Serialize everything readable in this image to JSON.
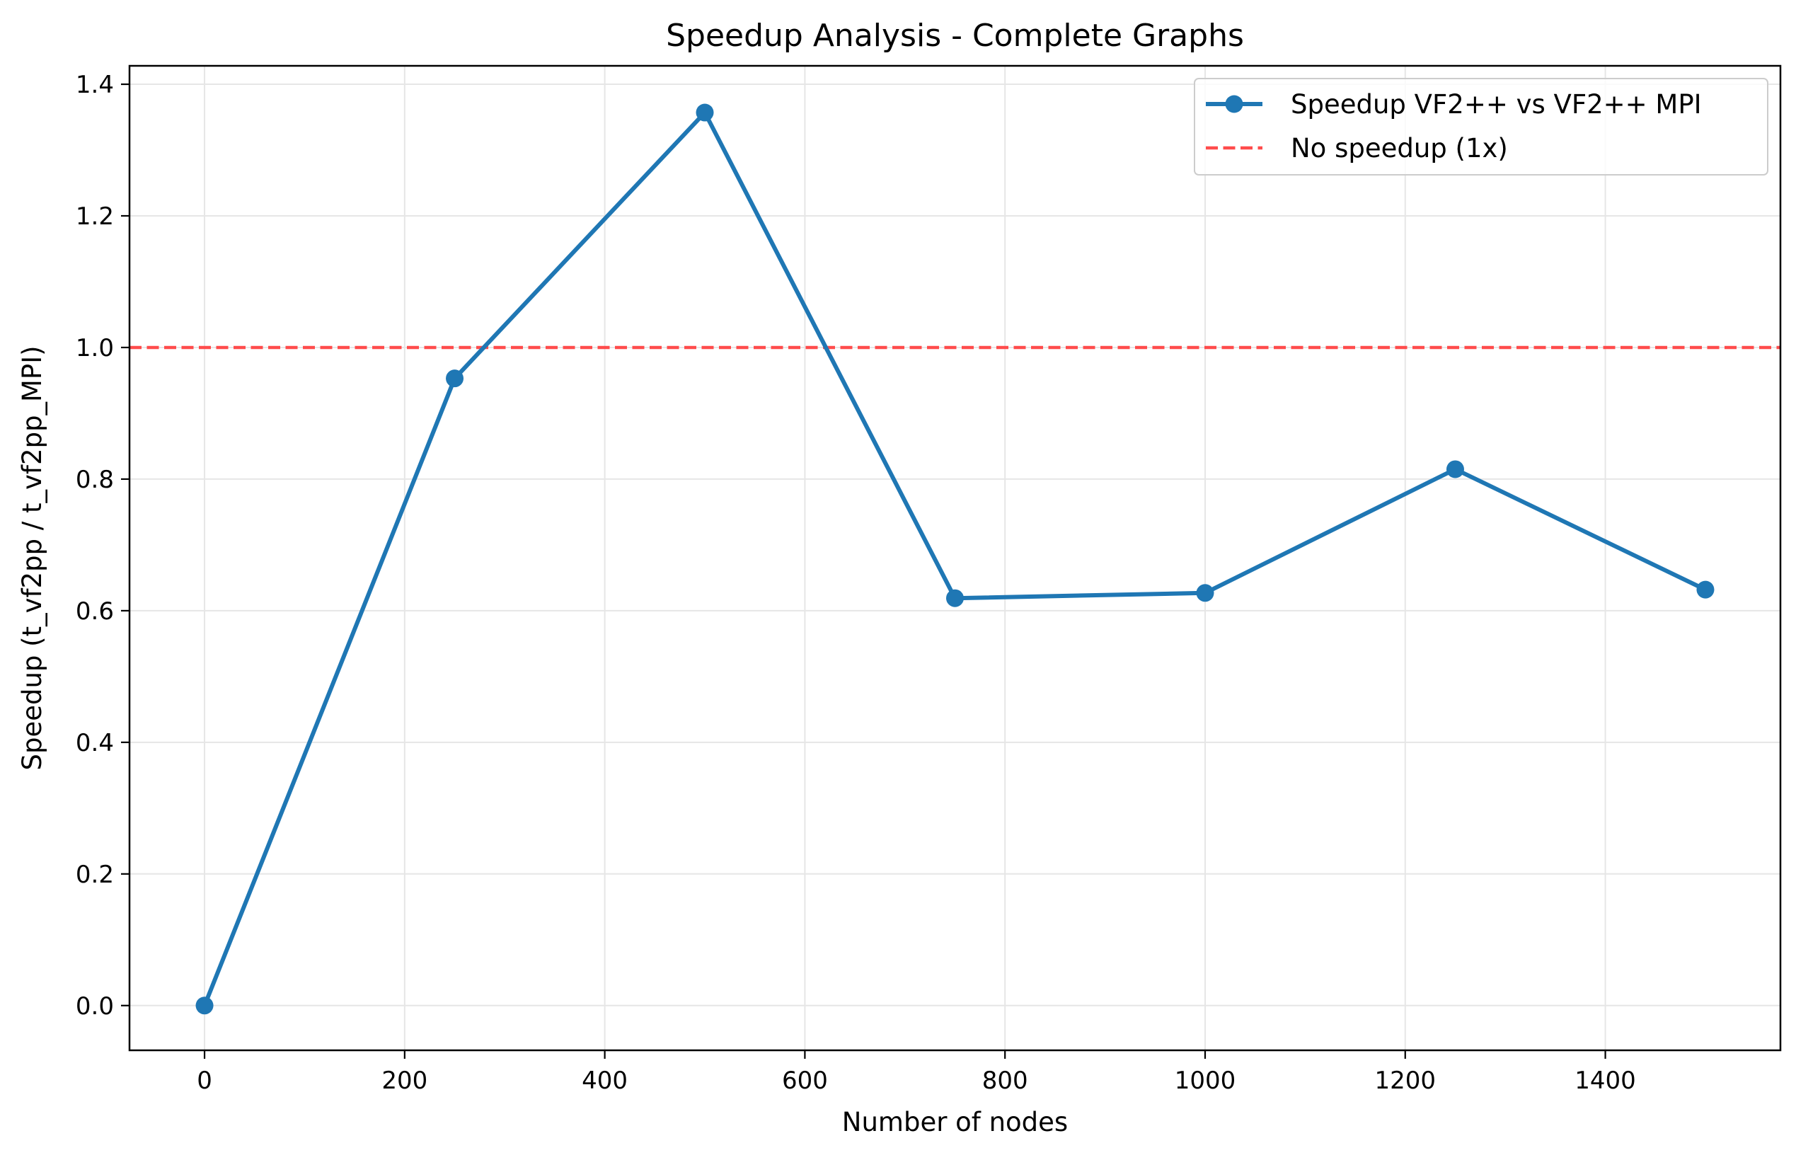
{
  "chart_data": {
    "type": "line",
    "title": "Speedup Analysis - Complete Graphs",
    "xlabel": "Number of nodes",
    "ylabel": "Speedup (t_vf2pp / t_vf2pp_MPI)",
    "xlim": [
      -75,
      1575
    ],
    "ylim": [
      -0.068,
      1.428
    ],
    "xticks": [
      0,
      200,
      400,
      600,
      800,
      1000,
      1200,
      1400
    ],
    "xtick_labels": [
      "0",
      "200",
      "400",
      "600",
      "800",
      "1000",
      "1200",
      "1400"
    ],
    "yticks": [
      0.0,
      0.2,
      0.4,
      0.6,
      0.8,
      1.0,
      1.2,
      1.4
    ],
    "ytick_labels": [
      "0.0",
      "0.2",
      "0.4",
      "0.6",
      "0.8",
      "1.0",
      "1.2",
      "1.4"
    ],
    "grid": true,
    "legend_position": "top-right",
    "series": [
      {
        "name": "Speedup VF2++ vs VF2++ MPI",
        "style": "line-marker",
        "color": "#1f77b4",
        "x": [
          0,
          250,
          500,
          750,
          1000,
          1250,
          1500
        ],
        "y": [
          0.0,
          0.953,
          1.357,
          0.619,
          0.627,
          0.815,
          0.632
        ]
      }
    ],
    "reference_lines": [
      {
        "name": "No speedup (1x)",
        "y": 1.0,
        "style": "dashed",
        "color": "#ff4c4c"
      }
    ]
  }
}
